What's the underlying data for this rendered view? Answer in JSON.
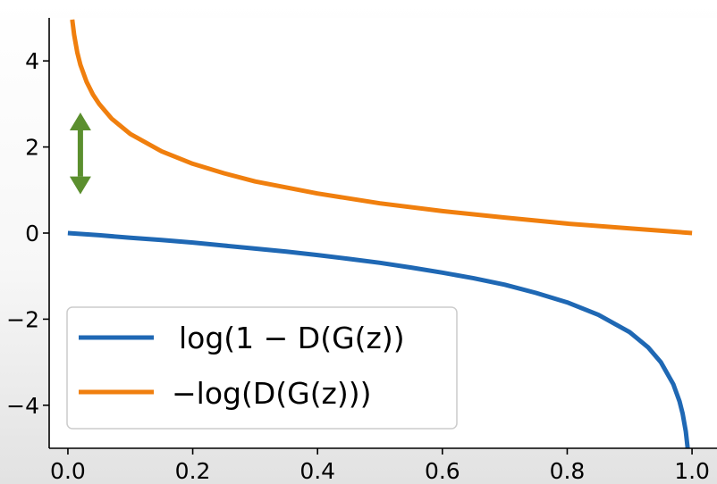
{
  "chart_data": {
    "type": "line",
    "title": "",
    "xlabel": "",
    "ylabel": "",
    "xlim": [
      -0.03,
      1.04
    ],
    "ylim": [
      -5,
      5
    ],
    "grid": false,
    "legend_position": "lower-left",
    "x_ticks": [
      {
        "value": 0.0,
        "label": "0.0"
      },
      {
        "value": 0.2,
        "label": "0.2"
      },
      {
        "value": 0.4,
        "label": "0.4"
      },
      {
        "value": 0.6,
        "label": "0.6"
      },
      {
        "value": 0.8,
        "label": "0.8"
      },
      {
        "value": 1.0,
        "label": "1.0"
      }
    ],
    "y_ticks": [
      {
        "value": 4,
        "label": "4"
      },
      {
        "value": 2,
        "label": "2"
      },
      {
        "value": 0,
        "label": "0"
      },
      {
        "value": -2,
        "label": "−2"
      },
      {
        "value": -4,
        "label": "−4"
      }
    ],
    "series": [
      {
        "name": "log(1 − D(G(z))",
        "color": "#1f68b4",
        "x": [
          0.0,
          0.05,
          0.1,
          0.15,
          0.2,
          0.25,
          0.3,
          0.35,
          0.4,
          0.45,
          0.5,
          0.55,
          0.6,
          0.65,
          0.7,
          0.75,
          0.8,
          0.85,
          0.9,
          0.93,
          0.95,
          0.97,
          0.98,
          0.985,
          0.99,
          0.993
        ],
        "y": [
          0.0,
          -0.05,
          -0.11,
          -0.16,
          -0.22,
          -0.29,
          -0.36,
          -0.43,
          -0.51,
          -0.6,
          -0.69,
          -0.8,
          -0.92,
          -1.05,
          -1.2,
          -1.39,
          -1.61,
          -1.9,
          -2.3,
          -2.66,
          -3.0,
          -3.51,
          -3.91,
          -4.2,
          -4.61,
          -5.0
        ]
      },
      {
        "name": "−log(D(G(z)))",
        "color": "#f07f0e",
        "x": [
          0.007,
          0.01,
          0.015,
          0.02,
          0.03,
          0.04,
          0.05,
          0.07,
          0.1,
          0.15,
          0.2,
          0.25,
          0.3,
          0.4,
          0.5,
          0.6,
          0.7,
          0.8,
          0.9,
          1.0
        ],
        "y": [
          4.96,
          4.61,
          4.2,
          3.91,
          3.51,
          3.22,
          3.0,
          2.66,
          2.3,
          1.9,
          1.61,
          1.39,
          1.2,
          0.92,
          0.69,
          0.51,
          0.36,
          0.22,
          0.11,
          0.0
        ]
      }
    ],
    "annotations": [
      {
        "kind": "double-arrow",
        "x": 0.02,
        "y_from": 2.8,
        "y_to": 0.9,
        "color": "#5b8f2e"
      }
    ]
  }
}
